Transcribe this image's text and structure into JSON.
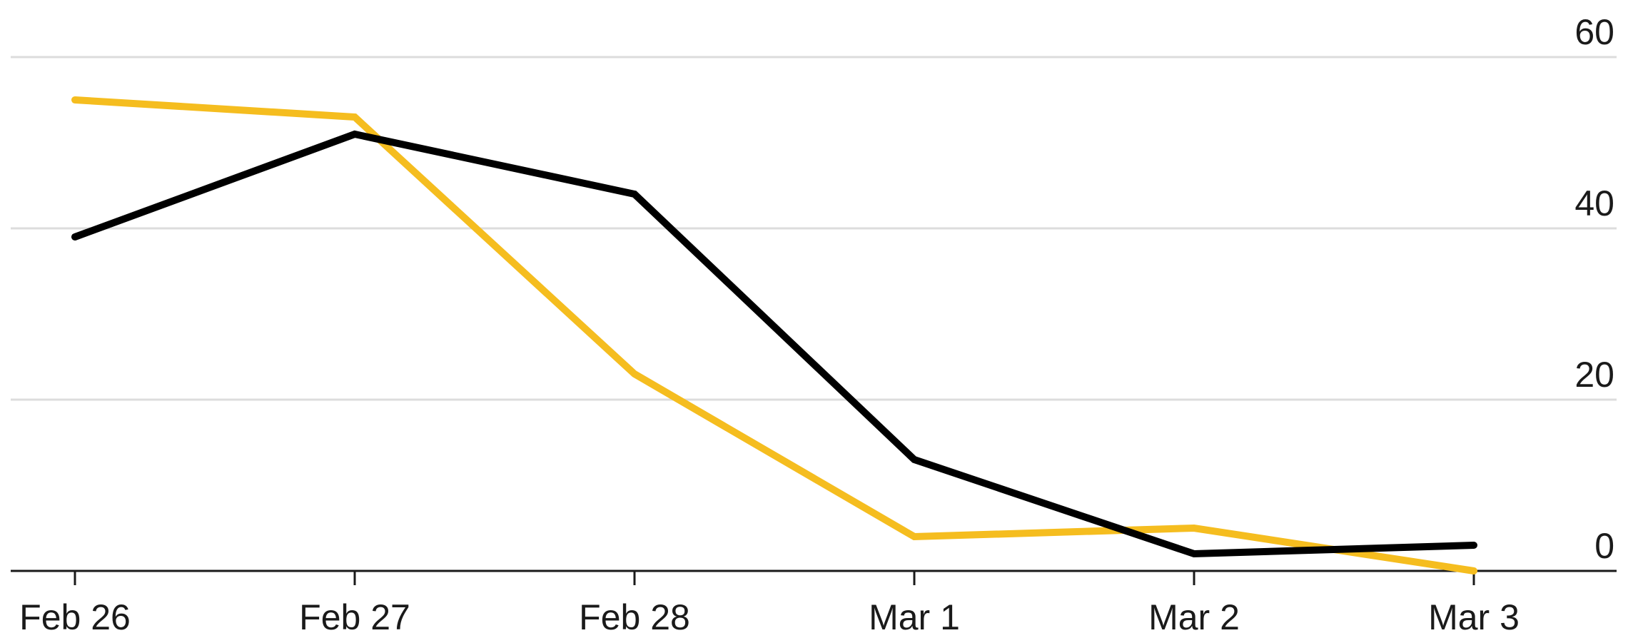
{
  "chart_data": {
    "type": "line",
    "categories": [
      "Feb 26",
      "Feb 27",
      "Feb 28",
      "Mar 1",
      "Mar 2",
      "Mar 3"
    ],
    "series": [
      {
        "color": "#f5bd1f",
        "values": [
          55,
          53,
          23,
          4,
          5,
          0
        ]
      },
      {
        "color": "#000000",
        "values": [
          39,
          51,
          44,
          13,
          2,
          3
        ]
      }
    ],
    "y_ticks": [
      "0",
      "20",
      "40",
      "60"
    ],
    "y_tick_values": [
      0,
      20,
      40,
      60
    ],
    "ylim": [
      0,
      60
    ],
    "grid": "horizontal",
    "y_axis_position": "right",
    "title": "",
    "xlabel": "",
    "ylabel": ""
  }
}
